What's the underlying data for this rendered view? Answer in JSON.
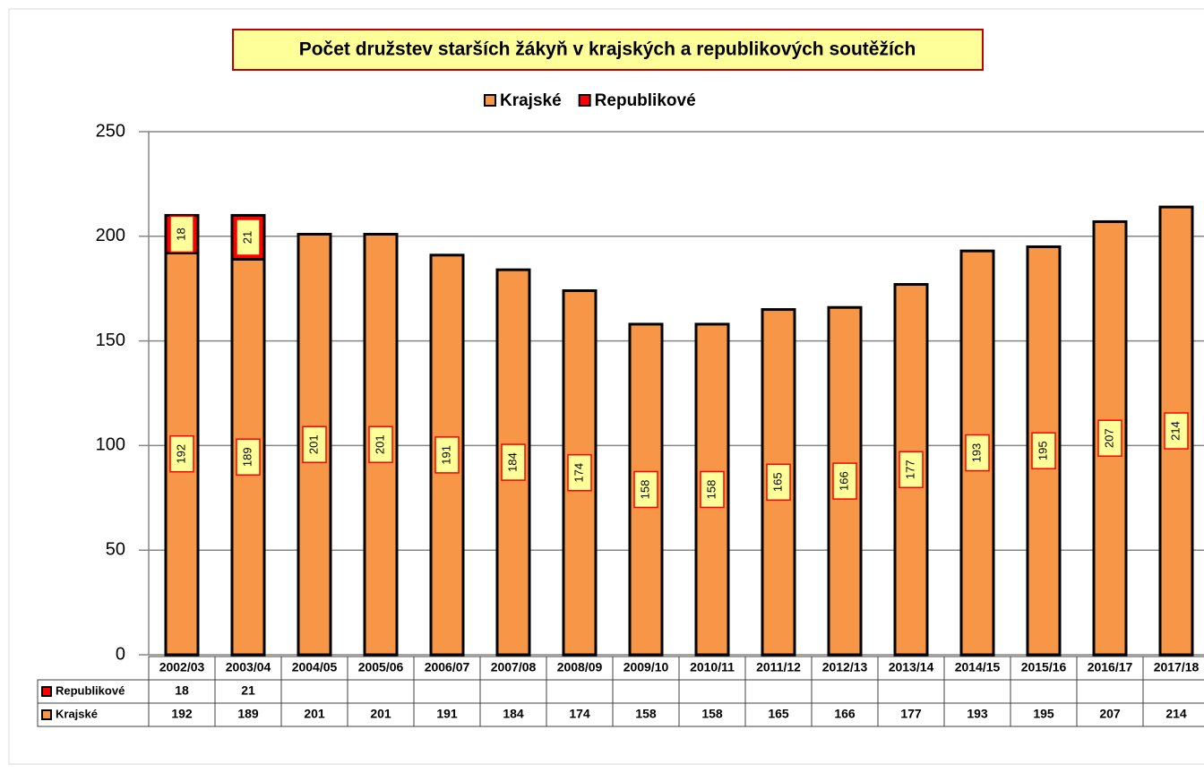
{
  "chart_data": {
    "type": "bar",
    "stacked": true,
    "title": "Počet družstev starších žákyň v krajských a republikových soutěžích",
    "categories": [
      "2002/03",
      "2003/04",
      "2004/05",
      "2005/06",
      "2006/07",
      "2007/08",
      "2008/09",
      "2009/10",
      "2010/11",
      "2011/12",
      "2012/13",
      "2013/14",
      "2014/15",
      "2015/16",
      "2016/17",
      "2017/18"
    ],
    "series": [
      {
        "name": "Krajské",
        "color": "#f79646",
        "values": [
          192,
          189,
          201,
          201,
          191,
          184,
          174,
          158,
          158,
          165,
          166,
          177,
          193,
          195,
          207,
          214
        ]
      },
      {
        "name": "Republikové",
        "color": "#ff0000",
        "values": [
          18,
          21,
          null,
          null,
          null,
          null,
          null,
          null,
          null,
          null,
          null,
          null,
          null,
          null,
          null,
          null
        ]
      }
    ],
    "ylim": [
      0,
      250
    ],
    "yticks": [
      0,
      50,
      100,
      150,
      200,
      250
    ],
    "grid": true,
    "legend": "top",
    "data_table": true
  }
}
